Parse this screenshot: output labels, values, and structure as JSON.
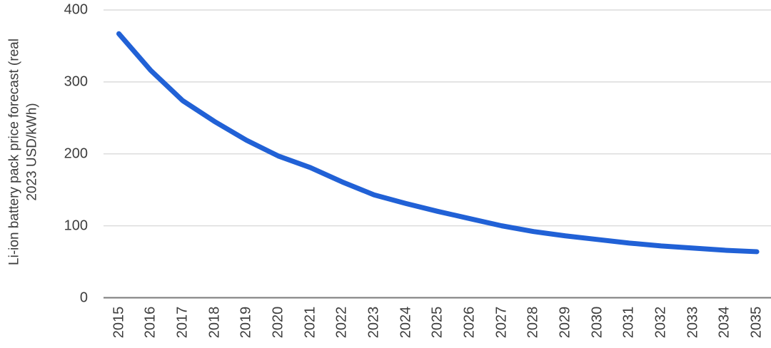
{
  "chart_data": {
    "type": "line",
    "title": "",
    "xlabel": "",
    "ylabel": "Li-ion battery pack price forecast (real\n2023 USD/kWh)",
    "x": [
      2015,
      2016,
      2017,
      2018,
      2019,
      2020,
      2021,
      2022,
      2023,
      2024,
      2025,
      2026,
      2027,
      2028,
      2029,
      2030,
      2031,
      2032,
      2033,
      2034,
      2035
    ],
    "series": [
      {
        "name": "Li-ion battery pack price (real 2023 USD/kWh)",
        "values": [
          367,
          316,
          274,
          245,
          219,
          197,
          181,
          161,
          143,
          131,
          120,
          110,
          100,
          92,
          86,
          81,
          76,
          72,
          69,
          66,
          64
        ]
      }
    ],
    "yticks": [
      0,
      100,
      200,
      300,
      400
    ],
    "ylim": [
      0,
      400
    ],
    "xlim": [
      2015,
      2035
    ],
    "grid": "horizontal-only",
    "legend": "none"
  },
  "colors": {
    "line": "#2161d6",
    "gridline": "#dcdcdc",
    "axis_line": "#7a7a7a",
    "tick_text": "#3d3d3d"
  }
}
